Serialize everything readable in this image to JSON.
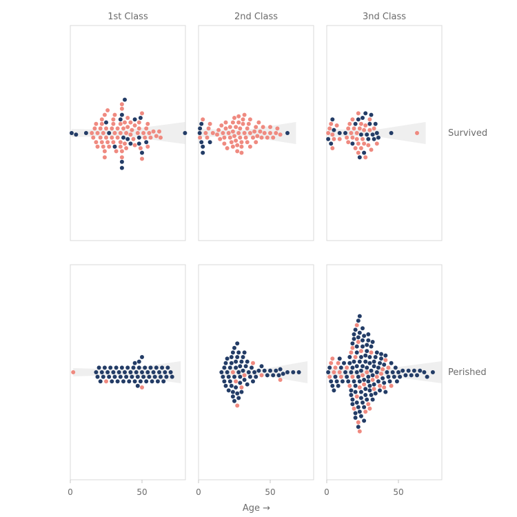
{
  "chart_data": {
    "type": "swarm",
    "columns": [
      "1st Class",
      "2nd Class",
      "3nd Class"
    ],
    "rows": [
      "Survived",
      "Perished"
    ],
    "xlabel": "Age →",
    "xlim": [
      0,
      80
    ],
    "xticks": [
      0,
      50
    ],
    "colors": {
      "female": "#ef8a80",
      "male": "#233c66",
      "band": "#d8d8d8",
      "frame": "#d9d9d9"
    },
    "groups": [
      {
        "row": "Survived",
        "column": "1st Class",
        "female": [
          15,
          16,
          17,
          18,
          18,
          19,
          19,
          21,
          21,
          22,
          22,
          22,
          23,
          23,
          24,
          24,
          24,
          25,
          25,
          26,
          26,
          27,
          29,
          29,
          30,
          30,
          30,
          31,
          31,
          32,
          33,
          33,
          35,
          35,
          35,
          35,
          36,
          36,
          36,
          36,
          37,
          38,
          38,
          39,
          39,
          40,
          40,
          42,
          42,
          43,
          44,
          45,
          45,
          47,
          48,
          48,
          49,
          50,
          50,
          51,
          52,
          53,
          54,
          54,
          55,
          56,
          58,
          60,
          62,
          63
        ],
        "male": [
          0.9,
          4,
          11,
          25,
          27,
          31,
          35,
          36,
          36,
          36,
          37,
          38,
          40,
          42,
          45,
          48,
          48,
          49,
          50,
          53,
          80
        ]
      },
      {
        "row": "Survived",
        "column": "2nd Class",
        "female": [
          1,
          3,
          5,
          6,
          7,
          8,
          10,
          13,
          14,
          15,
          16,
          17,
          18,
          18,
          19,
          19,
          20,
          21,
          22,
          22,
          23,
          24,
          24,
          24,
          25,
          25,
          26,
          26,
          27,
          27,
          28,
          28,
          28,
          29,
          29,
          30,
          30,
          30,
          31,
          31,
          32,
          32,
          33,
          34,
          34,
          35,
          36,
          36,
          36,
          38,
          39,
          40,
          40,
          41,
          42,
          43,
          44,
          45,
          46,
          48,
          50,
          50,
          52,
          54,
          55,
          57
        ],
        "male": [
          0.8,
          1,
          2,
          2,
          3,
          3,
          8,
          62
        ]
      },
      {
        "row": "Survived",
        "column": "3nd Class",
        "female": [
          1,
          2,
          3,
          4,
          4,
          5,
          7,
          9,
          14,
          15,
          15,
          16,
          17,
          18,
          18,
          19,
          20,
          21,
          21,
          22,
          22,
          22,
          23,
          24,
          24,
          25,
          26,
          26,
          27,
          27,
          29,
          30,
          30,
          31,
          33,
          35,
          63
        ],
        "male": [
          1,
          3,
          4,
          5,
          9,
          13,
          18,
          20,
          22,
          23,
          24,
          25,
          26,
          27,
          28,
          29,
          30,
          31,
          32,
          33,
          34,
          35,
          36,
          45
        ]
      },
      {
        "row": "Perished",
        "column": "1st Class",
        "female": [
          2,
          25,
          50
        ],
        "male": [
          18,
          19,
          20,
          21,
          22,
          23,
          24,
          26,
          27,
          28,
          29,
          30,
          31,
          32,
          33,
          34,
          35,
          36,
          37,
          38,
          39,
          40,
          41,
          42,
          43,
          44,
          45,
          45,
          46,
          47,
          47,
          48,
          48,
          49,
          50,
          50,
          51,
          52,
          53,
          54,
          55,
          56,
          57,
          58,
          59,
          60,
          61,
          62,
          63,
          64,
          65,
          66,
          67,
          68,
          70,
          71
        ]
      },
      {
        "row": "Perished",
        "column": "2nd Class",
        "female": [
          24,
          26,
          27,
          30,
          32,
          38,
          44,
          57
        ],
        "male": [
          16,
          17,
          18,
          18,
          19,
          19,
          20,
          20,
          21,
          21,
          22,
          22,
          23,
          23,
          23,
          24,
          24,
          24,
          25,
          25,
          25,
          26,
          26,
          26,
          27,
          27,
          27,
          28,
          28,
          28,
          29,
          29,
          29,
          30,
          30,
          31,
          31,
          32,
          32,
          33,
          34,
          34,
          35,
          36,
          37,
          38,
          39,
          40,
          42,
          44,
          46,
          48,
          50,
          52,
          54,
          56,
          57,
          59,
          62,
          66,
          70
        ]
      },
      {
        "row": "Perished",
        "column": "3nd Class",
        "female": [
          2,
          3,
          4,
          5,
          6,
          8,
          9,
          10,
          14,
          16,
          17,
          18,
          18,
          19,
          20,
          21,
          21,
          22,
          22,
          23,
          23,
          24,
          25,
          26,
          27,
          28,
          29,
          30,
          31,
          32,
          33,
          35,
          37,
          38,
          39,
          40,
          41,
          43,
          45
        ],
        "male": [
          1,
          2,
          3,
          4,
          5,
          6,
          7,
          8,
          9,
          10,
          11,
          12,
          13,
          14,
          15,
          16,
          16,
          17,
          17,
          17,
          18,
          18,
          18,
          18,
          19,
          19,
          19,
          19,
          20,
          20,
          20,
          20,
          20,
          21,
          21,
          21,
          21,
          21,
          22,
          22,
          22,
          22,
          22,
          23,
          23,
          23,
          23,
          23,
          24,
          24,
          24,
          24,
          24,
          25,
          25,
          25,
          25,
          25,
          26,
          26,
          26,
          26,
          27,
          27,
          27,
          27,
          28,
          28,
          28,
          28,
          29,
          29,
          29,
          29,
          30,
          30,
          30,
          30,
          31,
          31,
          31,
          32,
          32,
          32,
          33,
          33,
          33,
          34,
          34,
          35,
          35,
          36,
          36,
          37,
          37,
          38,
          38,
          39,
          40,
          40,
          41,
          41,
          42,
          43,
          44,
          45,
          46,
          47,
          48,
          49,
          50,
          51,
          53,
          55,
          57,
          59,
          61,
          63,
          65,
          68,
          70,
          74
        ]
      }
    ]
  }
}
